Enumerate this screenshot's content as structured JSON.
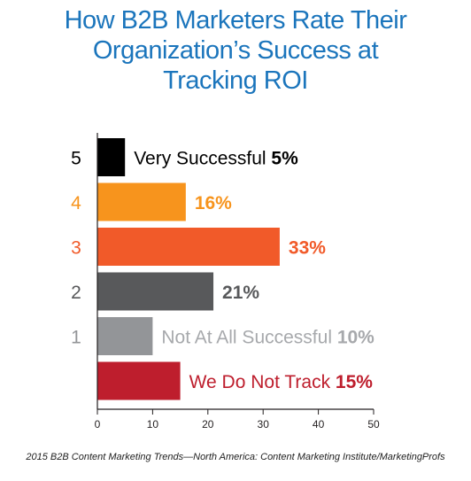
{
  "title_lines": [
    "How B2B Marketers Rate Their",
    "Organization’s Success at",
    "Tracking ROI"
  ],
  "source": "2015 B2B Content Marketing Trends—North America: Content Marketing Institute/MarketingProfs",
  "chart_data": {
    "type": "bar",
    "orientation": "horizontal",
    "title": "How B2B Marketers Rate Their Organization’s Success at Tracking ROI",
    "categories": [
      "5",
      "4",
      "3",
      "2",
      "1",
      ""
    ],
    "values": [
      5,
      16,
      33,
      21,
      10,
      15
    ],
    "value_labels": [
      "5%",
      "16%",
      "33%",
      "21%",
      "10%",
      "15%"
    ],
    "bar_text": [
      "Very Successful",
      "",
      "",
      "",
      "Not At All Successful",
      "We Do Not Track"
    ],
    "colors": [
      "#000000",
      "#f7941d",
      "#f15a29",
      "#58595b",
      "#939598",
      "#be1e2d"
    ],
    "category_colors": [
      "#000000",
      "#f7941d",
      "#f15a29",
      "#58595b",
      "#939598",
      "#000000"
    ],
    "label_colors": [
      "#000000",
      "#f7941d",
      "#f15a29",
      "#58595b",
      "#a7a9ac",
      "#be1e2d"
    ],
    "xlim": [
      0,
      50
    ],
    "xticks": [
      "0",
      "10",
      "20",
      "30",
      "40",
      "50"
    ],
    "xlabel": "",
    "ylabel": "",
    "grid": false
  }
}
